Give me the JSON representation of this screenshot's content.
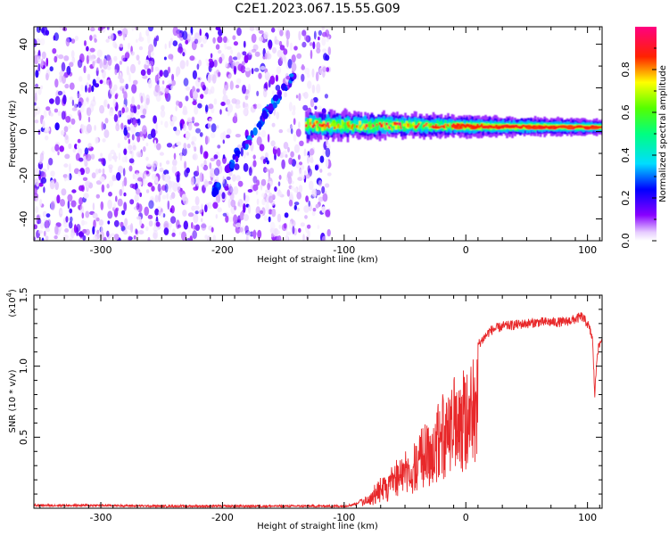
{
  "chart_data": [
    {
      "panel": "spectrogram",
      "type": "heatmap",
      "title": "C2E1.2023.067.15.55.G09",
      "xlabel": "Height of straight line (km)",
      "ylabel": "Frequency (Hz)",
      "xlim": [
        -355,
        112
      ],
      "ylim": [
        -50,
        48
      ],
      "xticks": [
        -300,
        -200,
        -100,
        0,
        100
      ],
      "xtick_labels": [
        "-300",
        "-200",
        "-100",
        "0",
        "100"
      ],
      "yticks": [
        -40,
        -20,
        0,
        20,
        40
      ],
      "ytick_labels": [
        "-40",
        "-20",
        "0",
        "20",
        "40"
      ],
      "colorbar": {
        "label": "Normalized spectral amplitude",
        "range": [
          0.0,
          1.0
        ],
        "ticks": [
          0.0,
          0.2,
          0.4,
          0.6,
          0.8
        ],
        "tick_labels": [
          "0.0",
          "0.2",
          "0.4",
          "0.6",
          "0.8"
        ],
        "colormap": "rainbow (white-violet-blue-cyan-green-yellow-red-magenta)"
      },
      "features": {
        "noise_region_x": [
          -355,
          -115
        ],
        "signal_band_x": [
          -132,
          112
        ],
        "signal_center_freq_hz": 3,
        "signal_band_halfwidth_hz": 4,
        "peak_amplitude": 0.85,
        "diagonal_streak_from": [
          -208,
          -28
        ],
        "diagonal_streak_to": [
          -142,
          26
        ]
      }
    },
    {
      "panel": "snr",
      "type": "line",
      "xlabel": "Height of straight line (km)",
      "ylabel": "SNR (10 * v/v)",
      "y_multiplier_label": "(x10",
      "y_multiplier_exp": "4",
      "y_multiplier_close": ")",
      "xlim": [
        -355,
        112
      ],
      "ylim": [
        0,
        15000
      ],
      "xticks": [
        -300,
        -200,
        -100,
        0,
        100
      ],
      "xtick_labels": [
        "-300",
        "-200",
        "-100",
        "0",
        "100"
      ],
      "yticks": [
        5000,
        10000,
        15000
      ],
      "ytick_labels": [
        "0.5",
        "1.0",
        "1.5"
      ],
      "color": "#e8282a",
      "series": [
        {
          "x": [
            -355,
            -300,
            -250,
            -200,
            -150,
            -100,
            -90,
            -80,
            -70,
            -60,
            -50,
            -40,
            -30,
            -20,
            -10,
            0,
            10,
            20,
            30,
            40,
            50,
            60,
            70,
            80,
            90,
            95,
            100,
            104,
            106,
            108,
            112
          ],
          "y": [
            200,
            200,
            150,
            150,
            150,
            150,
            300,
            1000,
            2000,
            3000,
            4000,
            5000,
            6500,
            8000,
            9000,
            10500,
            11500,
            12500,
            12800,
            12900,
            13000,
            13100,
            13100,
            13100,
            13300,
            13500,
            13000,
            12000,
            8000,
            11000,
            12000
          ]
        }
      ]
    }
  ]
}
